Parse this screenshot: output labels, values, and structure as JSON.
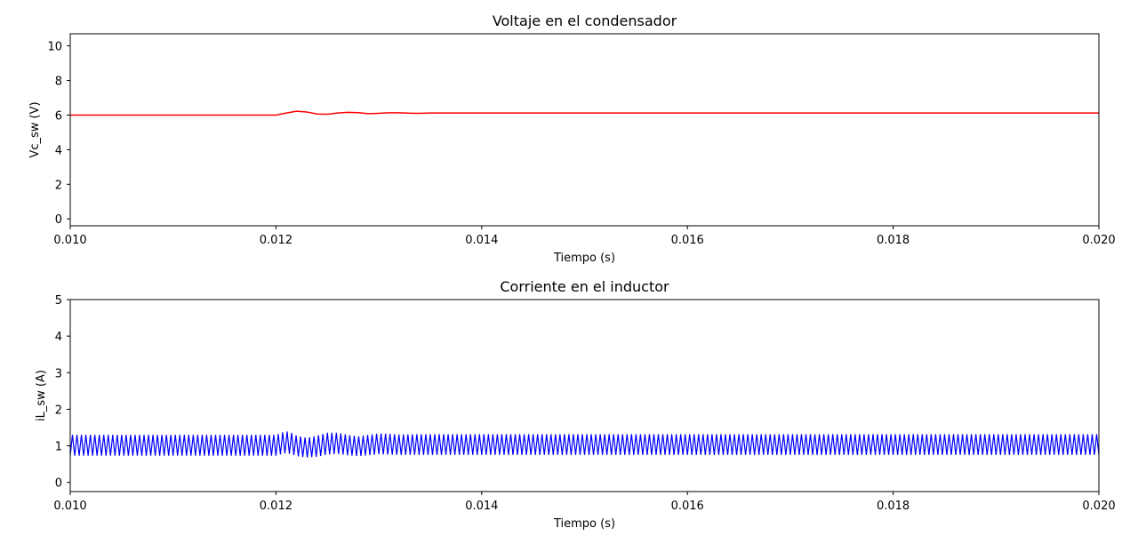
{
  "chart_data": [
    {
      "type": "line",
      "title": "Voltaje en el condensador",
      "xlabel": "Tiempo (s)",
      "ylabel": "Vc_sw (V)",
      "xlim": [
        0.01,
        0.02
      ],
      "ylim": [
        -0.4,
        10.7
      ],
      "xticks": [
        0.01,
        0.012,
        0.014,
        0.016,
        0.018,
        0.02
      ],
      "xtick_labels": [
        "0.010",
        "0.012",
        "0.014",
        "0.016",
        "0.018",
        "0.020"
      ],
      "yticks": [
        0,
        2,
        4,
        6,
        8,
        10
      ],
      "ytick_labels": [
        "0",
        "2",
        "4",
        "6",
        "8",
        "10"
      ],
      "grid": false,
      "series": [
        {
          "color": "#ff0000",
          "x": [
            0.01,
            0.011,
            0.012,
            0.0121,
            0.0122,
            0.0123,
            0.0124,
            0.0125,
            0.0126,
            0.0127,
            0.0128,
            0.0129,
            0.013,
            0.0131,
            0.0132,
            0.0133,
            0.0134,
            0.0135,
            0.014,
            0.015,
            0.016,
            0.018,
            0.02
          ],
          "values": [
            6.0,
            6.0,
            6.0,
            6.12,
            6.22,
            6.18,
            6.06,
            6.05,
            6.12,
            6.16,
            6.14,
            6.08,
            6.1,
            6.13,
            6.13,
            6.11,
            6.1,
            6.12,
            6.12,
            6.12,
            6.12,
            6.12,
            6.12
          ]
        }
      ]
    },
    {
      "type": "line",
      "title": "Corriente en el inductor",
      "xlabel": "Tiempo (s)",
      "ylabel": "iL_sw (A)",
      "xlim": [
        0.01,
        0.02
      ],
      "ylim": [
        -0.25,
        5.0
      ],
      "xticks": [
        0.01,
        0.012,
        0.014,
        0.016,
        0.018,
        0.02
      ],
      "xtick_labels": [
        "0.010",
        "0.012",
        "0.014",
        "0.016",
        "0.018",
        "0.020"
      ],
      "yticks": [
        0,
        1,
        2,
        3,
        4,
        5
      ],
      "ytick_labels": [
        "0",
        "1",
        "2",
        "3",
        "4",
        "5"
      ],
      "grid": false,
      "series": [
        {
          "color": "#0000ff",
          "description_of_ripple": "switching ripple",
          "envelope_x": [
            0.01,
            0.012,
            0.01205,
            0.0121,
            0.01215,
            0.0122,
            0.0123,
            0.0124,
            0.0125,
            0.0126,
            0.0127,
            0.0128,
            0.0129,
            0.013,
            0.0131,
            0.0132,
            0.0134,
            0.014,
            0.02
          ],
          "upper": [
            1.3,
            1.3,
            1.36,
            1.4,
            1.36,
            1.28,
            1.22,
            1.28,
            1.36,
            1.36,
            1.3,
            1.26,
            1.3,
            1.34,
            1.33,
            1.31,
            1.32,
            1.32,
            1.32
          ],
          "lower": [
            0.73,
            0.73,
            0.77,
            0.8,
            0.77,
            0.72,
            0.68,
            0.7,
            0.76,
            0.78,
            0.74,
            0.72,
            0.74,
            0.77,
            0.76,
            0.75,
            0.75,
            0.75,
            0.75
          ],
          "cycles": 230
        }
      ]
    }
  ]
}
